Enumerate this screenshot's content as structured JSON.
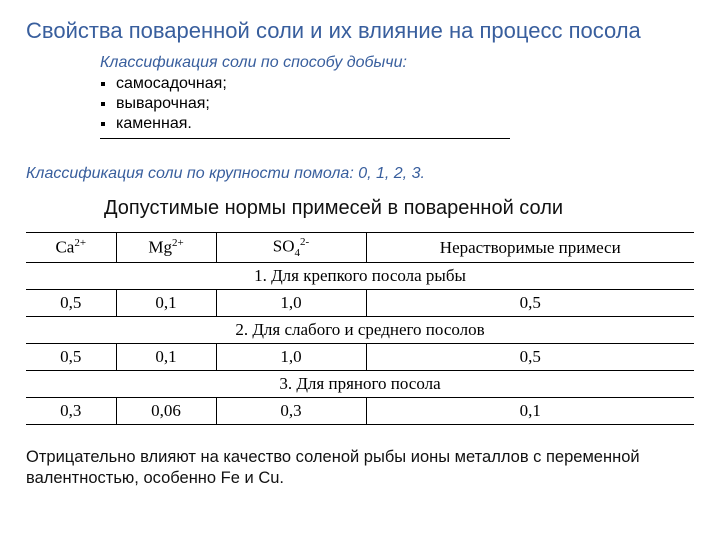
{
  "title": "Свойства поваренной соли и их влияние на процесс посола",
  "intro": {
    "heading": "Классификация соли по способу добычи:",
    "items": [
      "самосадочная;",
      "выварочная;",
      "каменная."
    ]
  },
  "grading": "Классификация соли по крупности помола: 0, 1, 2, 3.",
  "table_title": "Допустимые нормы примесей в поваренной соли",
  "table": {
    "columns": [
      {
        "text": "Ca",
        "sup": "2+"
      },
      {
        "text": "Mg",
        "sup": "2+"
      },
      {
        "text": "SO",
        "sub": "4",
        "sup": "2-"
      },
      {
        "text": "Нерастворимые примеси"
      }
    ],
    "sections": [
      {
        "label": "1. Для крепкого посола рыбы",
        "row": [
          "0,5",
          "0,1",
          "1,0",
          "0,5"
        ]
      },
      {
        "label": "2. Для слабого и среднего посолов",
        "row": [
          "0,5",
          "0,1",
          "1,0",
          "0,5"
        ]
      },
      {
        "label": "3. Для пряного посола",
        "row": [
          "0,3",
          "0,06",
          "0,3",
          "0,1"
        ]
      }
    ],
    "col_widths": [
      "90px",
      "100px",
      "150px",
      "auto"
    ],
    "border_color": "#000000",
    "font": "Times New Roman"
  },
  "footnote": "Отрицательно влияют на качество соленой рыбы ионы металлов с переменной валентностью, особенно Fe и Cu.",
  "colors": {
    "accent": "#385e9d",
    "background": "#ffffff",
    "text": "#000000"
  }
}
